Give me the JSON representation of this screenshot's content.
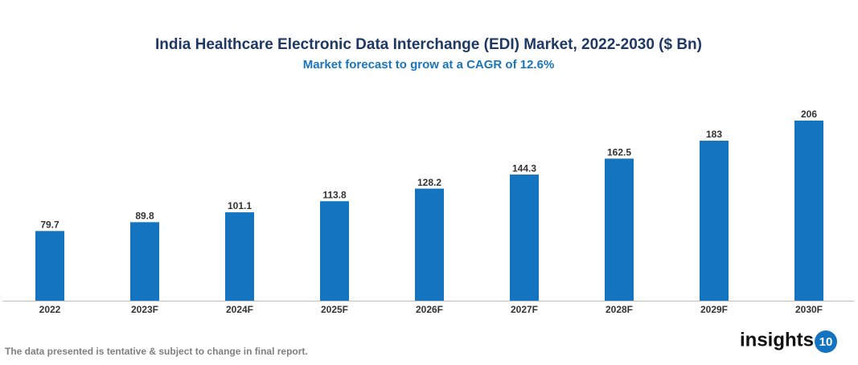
{
  "chart_data": {
    "type": "bar",
    "title": "India Healthcare Electronic Data Interchange (EDI) Market, 2022-2030 ($ Bn)",
    "subtitle": "Market forecast to grow at a CAGR of 12.6%",
    "categories": [
      "2022",
      "2023F",
      "2024F",
      "2025F",
      "2026F",
      "2027F",
      "2028F",
      "2029F",
      "2030F"
    ],
    "values": [
      79.7,
      89.8,
      101.1,
      113.8,
      128.2,
      144.3,
      162.5,
      183,
      206
    ],
    "color": "#1474bf"
  },
  "footnote": "The data presented is tentative & subject to change in final report.",
  "logo": {
    "text": "insights",
    "badge": "10"
  }
}
